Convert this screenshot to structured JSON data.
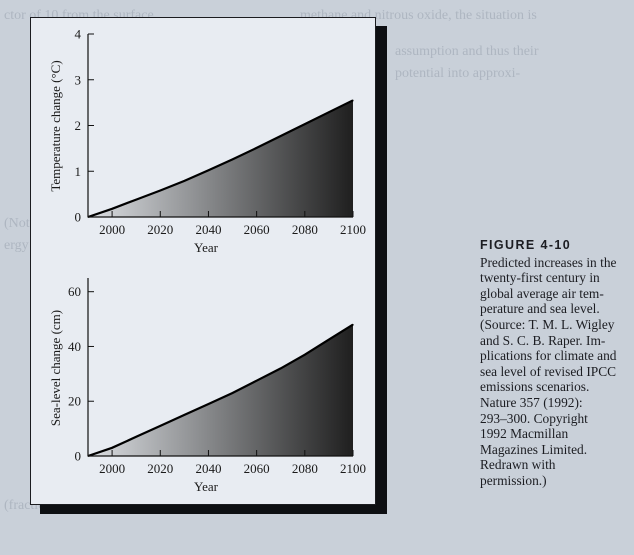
{
  "figure": {
    "label": "FIGURE 4-10",
    "caption": "Predicted increases in the\ntwenty-first century in\nglobal average air tem-\nperature and sea level.\n(Source: T. M. L. Wigley\nand S. C. B. Raper. Im-\nplications for climate and\nsea level of revised IPCC\nemissions scenarios.\nNature 357 (1992):\n293–300. Copyright\n1992 Macmillan\nMagazines Limited.\nRedrawn with\npermission.)"
  },
  "colors": {
    "page": "#c9d0d9",
    "panel": "#e8ecf2",
    "fill_dark": "#1f1f1f",
    "fill_light": "#dcdfe3",
    "line": "#000000"
  },
  "chart_data": [
    {
      "type": "area",
      "xlabel": "Year",
      "ylabel": "Temperature change (°C)",
      "xlim": [
        1990,
        2100
      ],
      "ylim": [
        0,
        4
      ],
      "xticks": [
        2000,
        2020,
        2040,
        2060,
        2080,
        2100
      ],
      "yticks": [
        0,
        1,
        2,
        3,
        4
      ],
      "grid": false,
      "x": [
        1990,
        2000,
        2010,
        2020,
        2030,
        2040,
        2050,
        2060,
        2070,
        2080,
        2090,
        2100
      ],
      "y": [
        0.0,
        0.18,
        0.38,
        0.58,
        0.79,
        1.02,
        1.26,
        1.51,
        1.77,
        2.03,
        2.29,
        2.55
      ]
    },
    {
      "type": "area",
      "xlabel": "Year",
      "ylabel": "Sea-level change (cm)",
      "xlim": [
        1990,
        2100
      ],
      "ylim": [
        0,
        65
      ],
      "xticks": [
        2000,
        2020,
        2040,
        2060,
        2080,
        2100
      ],
      "yticks": [
        0,
        20,
        40,
        60
      ],
      "grid": false,
      "x": [
        1990,
        2000,
        2010,
        2020,
        2030,
        2040,
        2050,
        2060,
        2070,
        2080,
        2090,
        2100
      ],
      "y": [
        0,
        3,
        7,
        11,
        15,
        19,
        23,
        27.5,
        32,
        37,
        42.5,
        48
      ]
    }
  ]
}
